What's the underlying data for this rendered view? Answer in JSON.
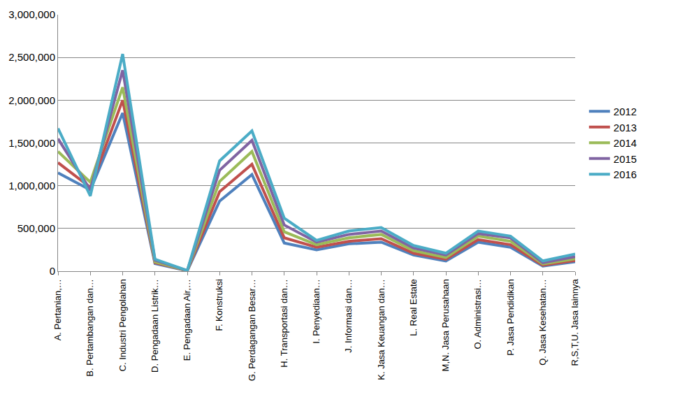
{
  "chart_data": {
    "type": "line",
    "categories": [
      "A. Pertanian,…",
      "B. Pertambangan dan…",
      "C. Industri Pengolahan",
      "D. Pengadaan Listrik…",
      "E. Pengadaan Air,…",
      "F. Konstruksi",
      "G. Perdagangan Besar…",
      "H. Transportasi dan…",
      "I. Penyediaan…",
      "J. Informasi dan…",
      "K. Jasa Keuangan dan…",
      "L. Real Estate",
      "M,N. Jasa Perusahaan",
      "O. Administrasi…",
      "P. Jasa Pendidikan",
      "Q. Jasa Kesehatan…",
      "R,S,T,U. Jasa lainnya"
    ],
    "series": [
      {
        "name": "2012",
        "color": "#4f81bd",
        "values": [
          1150000,
          950000,
          1850000,
          90000,
          5000,
          820000,
          1130000,
          330000,
          250000,
          320000,
          340000,
          190000,
          120000,
          340000,
          280000,
          60000,
          110000
        ]
      },
      {
        "name": "2013",
        "color": "#c0504d",
        "values": [
          1270000,
          980000,
          2000000,
          100000,
          6000,
          930000,
          1250000,
          390000,
          280000,
          350000,
          380000,
          210000,
          140000,
          370000,
          310000,
          70000,
          125000
        ]
      },
      {
        "name": "2014",
        "color": "#9bbb59",
        "values": [
          1400000,
          1040000,
          2150000,
          110000,
          6500,
          1050000,
          1400000,
          460000,
          310000,
          390000,
          430000,
          240000,
          160000,
          410000,
          350000,
          85000,
          145000
        ]
      },
      {
        "name": "2015",
        "color": "#8064a2",
        "values": [
          1550000,
          950000,
          2350000,
          130000,
          7000,
          1180000,
          1530000,
          540000,
          340000,
          430000,
          470000,
          270000,
          190000,
          440000,
          390000,
          100000,
          170000
        ]
      },
      {
        "name": "2016",
        "color": "#4bacc6",
        "values": [
          1670000,
          880000,
          2540000,
          140000,
          7500,
          1290000,
          1640000,
          620000,
          360000,
          470000,
          510000,
          300000,
          210000,
          470000,
          410000,
          120000,
          200000
        ]
      }
    ],
    "ylim": [
      0,
      3000000
    ],
    "yticks": [
      0,
      {
        "value": 500000,
        "label": "500,000"
      },
      {
        "value": 1000000,
        "label": "1,000,000"
      },
      {
        "value": 1500000,
        "label": "1,500,000"
      },
      {
        "value": 2000000,
        "label": "2,000,000"
      },
      {
        "value": 2500000,
        "label": "2,500,000"
      },
      {
        "value": 3000000,
        "label": "3,000,000"
      }
    ],
    "grid": true,
    "legend": "right"
  }
}
